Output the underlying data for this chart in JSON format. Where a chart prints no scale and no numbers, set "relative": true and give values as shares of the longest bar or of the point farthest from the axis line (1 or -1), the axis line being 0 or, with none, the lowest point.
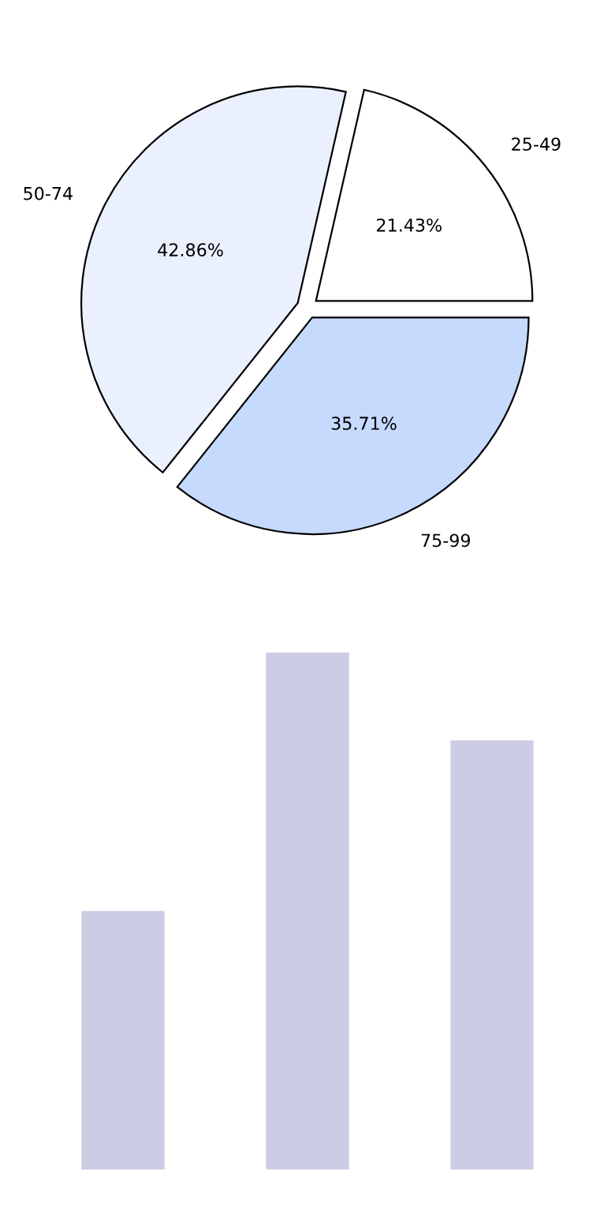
{
  "chart_data": [
    {
      "type": "pie",
      "categories": [
        "25-49",
        "50-74",
        "75-99"
      ],
      "values": [
        21.43,
        42.86,
        35.71
      ],
      "colors": [
        "#ffffff",
        "#eaf0fe",
        "#c6dafe"
      ],
      "value_labels": [
        "21.43%",
        "42.86%",
        "35.71%"
      ]
    },
    {
      "type": "bar",
      "categories": [
        null,
        null,
        null
      ],
      "values": [
        0.5,
        1,
        0.83
      ],
      "color": "#ccccE4",
      "relative": true
    }
  ]
}
